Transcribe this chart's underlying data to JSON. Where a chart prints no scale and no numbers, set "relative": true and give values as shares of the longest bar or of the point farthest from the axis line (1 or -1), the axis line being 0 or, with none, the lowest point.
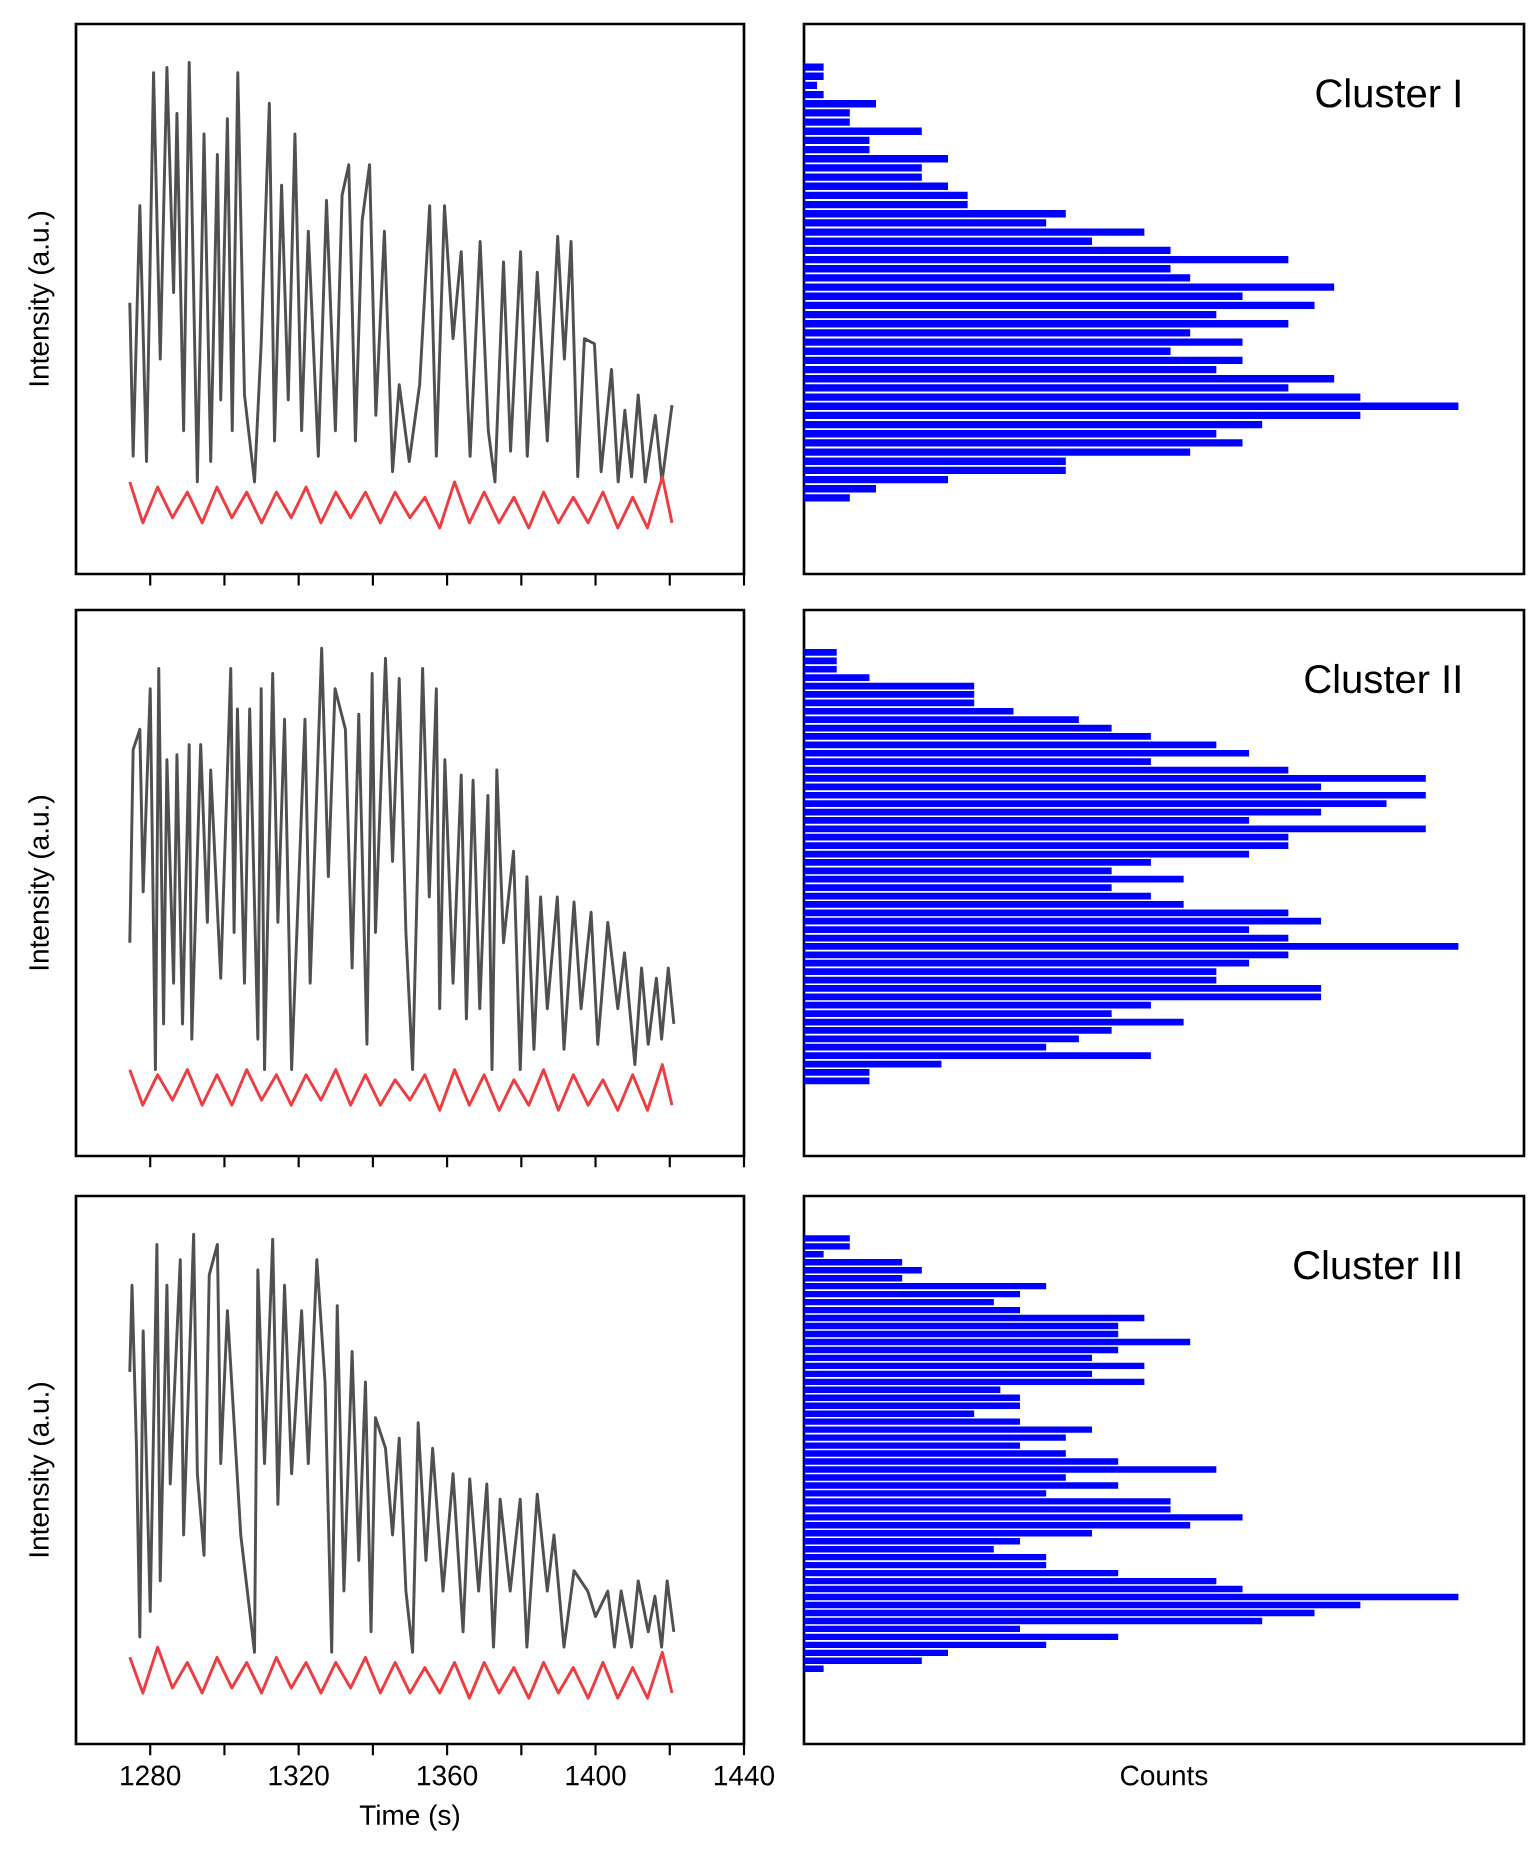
{
  "chart_data": [
    {
      "type": "line",
      "ylabel": "Intensity (a.u.)",
      "relative": true,
      "tick_labels": false,
      "xlim": [
        1260,
        1440
      ],
      "xticks": [
        1280,
        {
          "value": 1300,
          "label": null
        },
        1320,
        {
          "value": 1340,
          "label": null
        },
        1360,
        {
          "value": 1380,
          "label": null
        },
        1400,
        {
          "value": 1420,
          "label": null
        },
        1440
      ],
      "series": [
        {
          "color": "#505050",
          "x": [
            1274.5,
            1275.4,
            1277.2,
            1279,
            1280.9,
            1282.7,
            1284.5,
            1286.3,
            1287.2,
            1289,
            1290.5,
            1292.7,
            1294.5,
            1296.3,
            1298.1,
            1299,
            1300.8,
            1302.1,
            1303.6,
            1305.4,
            1308.1,
            1309.9,
            1312.1,
            1313.5,
            1315.4,
            1317.2,
            1319,
            1320.8,
            1322.6,
            1325.3,
            1327.5,
            1329.9,
            1331.7,
            1333.5,
            1335.3,
            1337.1,
            1339.1,
            1340.8,
            1343.1,
            1345.3,
            1347.1,
            1349.8,
            1352.6,
            1355.3,
            1357.1,
            1359.3,
            1361.6,
            1363.8,
            1366.2,
            1368.9,
            1371.1,
            1372.9,
            1375.2,
            1377.1,
            1379.8,
            1381.6,
            1384.3,
            1387,
            1389.8,
            1391.6,
            1393.4,
            1395.2,
            1397,
            1399.7,
            1401.5,
            1404.3,
            1406.1,
            1407.9,
            1409.7,
            1411.5,
            1413.4,
            1416.1,
            1417.9,
            1420.6
          ],
          "values": [
            0.53,
            0.23,
            0.72,
            0.22,
            0.98,
            0.42,
            0.99,
            0.55,
            0.9,
            0.28,
            1.0,
            0.18,
            0.86,
            0.22,
            0.82,
            0.34,
            0.89,
            0.28,
            0.98,
            0.35,
            0.18,
            0.45,
            0.92,
            0.26,
            0.76,
            0.34,
            0.86,
            0.28,
            0.67,
            0.23,
            0.73,
            0.28,
            0.74,
            0.8,
            0.26,
            0.69,
            0.8,
            0.31,
            0.67,
            0.2,
            0.37,
            0.22,
            0.37,
            0.72,
            0.23,
            0.72,
            0.46,
            0.63,
            0.23,
            0.65,
            0.28,
            0.18,
            0.61,
            0.24,
            0.63,
            0.23,
            0.59,
            0.26,
            0.66,
            0.42,
            0.65,
            0.19,
            0.46,
            0.45,
            0.2,
            0.4,
            0.18,
            0.32,
            0.19,
            0.35,
            0.18,
            0.31,
            0.18,
            0.33
          ]
        },
        {
          "color": "#ef3e42",
          "x": [
            1274.5,
            1278,
            1282,
            1286,
            1290,
            1294,
            1298,
            1302,
            1306,
            1310,
            1314,
            1318,
            1322,
            1326,
            1330,
            1334,
            1338,
            1342,
            1346,
            1350,
            1354,
            1358,
            1362,
            1366,
            1370,
            1374,
            1378,
            1382,
            1386,
            1390,
            1394,
            1398,
            1402,
            1406,
            1410,
            1414,
            1418,
            1420.6
          ],
          "values": [
            0.18,
            0.1,
            0.17,
            0.11,
            0.16,
            0.1,
            0.17,
            0.11,
            0.16,
            0.1,
            0.16,
            0.11,
            0.17,
            0.1,
            0.16,
            0.11,
            0.16,
            0.1,
            0.16,
            0.11,
            0.15,
            0.09,
            0.18,
            0.1,
            0.16,
            0.1,
            0.15,
            0.09,
            0.16,
            0.1,
            0.15,
            0.1,
            0.16,
            0.09,
            0.15,
            0.09,
            0.19,
            0.1
          ]
        }
      ]
    },
    {
      "type": "bar",
      "orientation": "horizontal",
      "relative": true,
      "color": "#0000ff",
      "annotations": [
        "Cluster I"
      ],
      "categories": [
        null,
        null,
        null,
        null,
        null,
        null,
        null,
        null,
        null,
        null,
        null,
        null,
        null,
        null,
        null,
        null,
        null,
        null,
        null,
        null,
        null,
        null,
        null,
        null,
        null,
        null,
        null,
        null,
        null,
        null,
        null,
        null,
        null,
        null,
        null,
        null,
        null,
        null,
        null,
        null,
        null,
        null,
        null,
        null,
        null,
        null,
        null,
        null
      ],
      "values": [
        0.03,
        0.03,
        0.02,
        0.03,
        0.11,
        0.07,
        0.07,
        0.18,
        0.1,
        0.1,
        0.22,
        0.18,
        0.18,
        0.22,
        0.25,
        0.25,
        0.4,
        0.37,
        0.52,
        0.44,
        0.56,
        0.74,
        0.56,
        0.59,
        0.81,
        0.67,
        0.78,
        0.63,
        0.74,
        0.59,
        0.67,
        0.56,
        0.67,
        0.63,
        0.81,
        0.74,
        0.85,
        1.0,
        0.85,
        0.7,
        0.63,
        0.67,
        0.59,
        0.4,
        0.4,
        0.22,
        0.11,
        0.07
      ]
    },
    {
      "type": "line",
      "ylabel": "Intensity (a.u.)",
      "relative": true,
      "tick_labels": false,
      "xlim": [
        1260,
        1440
      ],
      "xticks": [
        1280,
        {
          "value": 1300,
          "label": null
        },
        1320,
        {
          "value": 1340,
          "label": null
        },
        1360,
        {
          "value": 1380,
          "label": null
        },
        1400,
        {
          "value": 1420,
          "label": null
        },
        1440
      ],
      "series": [
        {
          "color": "#505050",
          "x": [
            1274.5,
            1275.4,
            1277.2,
            1278.1,
            1280.0,
            1281.4,
            1282.3,
            1283.6,
            1284.5,
            1286.3,
            1287.2,
            1288.7,
            1290.5,
            1291.2,
            1293.6,
            1295.4,
            1296.3,
            1299.0,
            1301.7,
            1302.6,
            1303.5,
            1305.4,
            1306.8,
            1309.0,
            1309.9,
            1310.8,
            1313.0,
            1314.4,
            1316.2,
            1318.1,
            1321.7,
            1323.1,
            1326.2,
            1328.0,
            1329.8,
            1332.6,
            1334.4,
            1336.2,
            1338.4,
            1339.8,
            1340.7,
            1343.4,
            1345.3,
            1347.1,
            1348.9,
            1350.7,
            1353.4,
            1355.2,
            1357.1,
            1358.0,
            1359.4,
            1361.6,
            1363.8,
            1365.2,
            1367.0,
            1368.8,
            1371.0,
            1372.1,
            1373.4,
            1375.2,
            1377.9,
            1379.7,
            1381.5,
            1383.4,
            1385.2,
            1387.0,
            1389.7,
            1391.5,
            1394.2,
            1396.1,
            1398.8,
            1400.6,
            1403.3,
            1406.0,
            1407.8,
            1410.6,
            1412.4,
            1414.2,
            1416.4,
            1417.8,
            1419.6,
            1421.1
          ],
          "values": [
            0.42,
            0.8,
            0.84,
            0.52,
            0.92,
            0.17,
            0.96,
            0.26,
            0.78,
            0.34,
            0.79,
            0.26,
            0.81,
            0.23,
            0.81,
            0.46,
            0.76,
            0.35,
            0.96,
            0.44,
            0.88,
            0.34,
            0.88,
            0.23,
            0.92,
            0.17,
            0.95,
            0.46,
            0.86,
            0.17,
            0.86,
            0.34,
            1.0,
            0.55,
            0.92,
            0.84,
            0.37,
            0.87,
            0.22,
            0.95,
            0.44,
            0.98,
            0.58,
            0.94,
            0.44,
            0.17,
            0.96,
            0.51,
            0.92,
            0.29,
            0.78,
            0.34,
            0.75,
            0.27,
            0.74,
            0.29,
            0.71,
            0.17,
            0.76,
            0.42,
            0.6,
            0.17,
            0.55,
            0.21,
            0.51,
            0.29,
            0.51,
            0.21,
            0.5,
            0.29,
            0.48,
            0.22,
            0.46,
            0.29,
            0.4,
            0.18,
            0.37,
            0.22,
            0.35,
            0.23,
            0.37,
            0.26
          ]
        },
        {
          "color": "#ef3e42",
          "x": [
            1274.5,
            1278,
            1282,
            1286,
            1290,
            1294,
            1298,
            1302,
            1306,
            1310,
            1314,
            1318,
            1322,
            1326,
            1330,
            1334,
            1338,
            1342,
            1346,
            1350,
            1354,
            1358,
            1362,
            1366,
            1370,
            1374,
            1378,
            1382,
            1386,
            1390,
            1394,
            1398,
            1402,
            1406,
            1410,
            1414,
            1418,
            1420.6
          ],
          "values": [
            0.17,
            0.1,
            0.16,
            0.11,
            0.17,
            0.1,
            0.16,
            0.1,
            0.17,
            0.11,
            0.16,
            0.1,
            0.16,
            0.11,
            0.17,
            0.1,
            0.16,
            0.1,
            0.15,
            0.11,
            0.16,
            0.09,
            0.17,
            0.1,
            0.16,
            0.09,
            0.15,
            0.1,
            0.17,
            0.09,
            0.16,
            0.1,
            0.15,
            0.09,
            0.16,
            0.09,
            0.18,
            0.1
          ]
        }
      ]
    },
    {
      "type": "bar",
      "orientation": "horizontal",
      "relative": true,
      "color": "#0000ff",
      "annotations": [
        "Cluster II"
      ],
      "categories": [
        null,
        null,
        null,
        null,
        null,
        null,
        null,
        null,
        null,
        null,
        null,
        null,
        null,
        null,
        null,
        null,
        null,
        null,
        null,
        null,
        null,
        null,
        null,
        null,
        null,
        null,
        null,
        null,
        null,
        null,
        null,
        null,
        null,
        null,
        null,
        null,
        null,
        null,
        null,
        null,
        null,
        null,
        null,
        null,
        null,
        null,
        null,
        null,
        null,
        null,
        null,
        null
      ],
      "values": [
        0.05,
        0.05,
        0.05,
        0.1,
        0.26,
        0.26,
        0.26,
        0.32,
        0.42,
        0.47,
        0.53,
        0.63,
        0.68,
        0.53,
        0.74,
        0.95,
        0.79,
        0.95,
        0.89,
        0.79,
        0.68,
        0.95,
        0.74,
        0.74,
        0.68,
        0.53,
        0.47,
        0.58,
        0.47,
        0.53,
        0.58,
        0.74,
        0.79,
        0.68,
        0.74,
        1.0,
        0.74,
        0.68,
        0.63,
        0.63,
        0.79,
        0.79,
        0.53,
        0.47,
        0.58,
        0.47,
        0.42,
        0.37,
        0.53,
        0.21,
        0.1,
        0.1
      ]
    },
    {
      "type": "line",
      "ylabel": "Intensity (a.u.)",
      "xlabel": "Time (s)",
      "relative": true,
      "tick_labels": "x",
      "xlim": [
        1260,
        1440
      ],
      "xticks": [
        1280,
        {
          "value": 1300,
          "label": null
        },
        1320,
        {
          "value": 1340,
          "label": null
        },
        1360,
        {
          "value": 1380,
          "label": null
        },
        1400,
        {
          "value": 1420,
          "label": null
        },
        1440
      ],
      "series": [
        {
          "color": "#505050",
          "x": [
            1274.5,
            1275.1,
            1276.3,
            1277.2,
            1278.1,
            1280.0,
            1281.8,
            1282.7,
            1284.5,
            1285.4,
            1288.1,
            1289.0,
            1291.7,
            1292.7,
            1294.5,
            1295.9,
            1298.1,
            1299.0,
            1300.8,
            1304.4,
            1308.1,
            1309.0,
            1310.8,
            1313.0,
            1314.4,
            1316.2,
            1318.1,
            1320.8,
            1322.6,
            1324.9,
            1327.1,
            1328.9,
            1330.4,
            1332.2,
            1334.4,
            1336.2,
            1338.0,
            1339.5,
            1340.7,
            1343.4,
            1345.3,
            1347.1,
            1348.9,
            1350.7,
            1352.2,
            1354.3,
            1356.1,
            1358.9,
            1361.6,
            1364.3,
            1366.1,
            1368.5,
            1370.7,
            1372.5,
            1374.3,
            1377.0,
            1379.7,
            1381.5,
            1384.3,
            1387.0,
            1388.8,
            1391.5,
            1394.2,
            1397.9,
            1400.0,
            1403.3,
            1405.1,
            1406.9,
            1409.7,
            1411.5,
            1414.2,
            1416.0,
            1417.8,
            1419.3,
            1421.1
          ],
          "values": [
            0.73,
            0.9,
            0.58,
            0.21,
            0.81,
            0.26,
            0.98,
            0.32,
            0.9,
            0.51,
            0.95,
            0.41,
            1.0,
            0.53,
            0.37,
            0.92,
            0.98,
            0.55,
            0.85,
            0.41,
            0.18,
            0.93,
            0.55,
            0.99,
            0.47,
            0.9,
            0.53,
            0.85,
            0.55,
            0.95,
            0.71,
            0.18,
            0.86,
            0.3,
            0.77,
            0.36,
            0.71,
            0.22,
            0.64,
            0.58,
            0.41,
            0.6,
            0.3,
            0.18,
            0.63,
            0.36,
            0.58,
            0.3,
            0.53,
            0.22,
            0.52,
            0.3,
            0.51,
            0.19,
            0.48,
            0.3,
            0.48,
            0.19,
            0.49,
            0.3,
            0.41,
            0.19,
            0.34,
            0.3,
            0.25,
            0.3,
            0.19,
            0.3,
            0.19,
            0.32,
            0.22,
            0.29,
            0.19,
            0.32,
            0.22
          ]
        },
        {
          "color": "#ef3e42",
          "x": [
            1274.5,
            1278,
            1282,
            1286,
            1290,
            1294,
            1298,
            1302,
            1306,
            1310,
            1314,
            1318,
            1322,
            1326,
            1330,
            1334,
            1338,
            1342,
            1346,
            1350,
            1354,
            1358,
            1362,
            1366,
            1370,
            1374,
            1378,
            1382,
            1386,
            1390,
            1394,
            1398,
            1402,
            1406,
            1410,
            1414,
            1418,
            1420.6
          ],
          "values": [
            0.17,
            0.1,
            0.19,
            0.11,
            0.16,
            0.1,
            0.17,
            0.11,
            0.16,
            0.1,
            0.17,
            0.11,
            0.16,
            0.1,
            0.16,
            0.11,
            0.17,
            0.1,
            0.16,
            0.1,
            0.15,
            0.1,
            0.16,
            0.09,
            0.16,
            0.1,
            0.15,
            0.09,
            0.16,
            0.1,
            0.15,
            0.09,
            0.16,
            0.09,
            0.15,
            0.09,
            0.18,
            0.1
          ]
        }
      ]
    },
    {
      "type": "bar",
      "orientation": "horizontal",
      "relative": true,
      "color": "#0000ff",
      "annotations": [
        "Cluster III"
      ],
      "xlabel": "Counts",
      "categories": [
        null,
        null,
        null,
        null,
        null,
        null,
        null,
        null,
        null,
        null,
        null,
        null,
        null,
        null,
        null,
        null,
        null,
        null,
        null,
        null,
        null,
        null,
        null,
        null,
        null,
        null,
        null,
        null,
        null,
        null,
        null,
        null,
        null,
        null,
        null,
        null,
        null,
        null,
        null,
        null,
        null,
        null,
        null,
        null,
        null,
        null,
        null,
        null,
        null,
        null,
        null,
        null,
        null,
        null,
        null
      ],
      "values": [
        0.07,
        0.07,
        0.03,
        0.15,
        0.18,
        0.15,
        0.37,
        0.33,
        0.29,
        0.33,
        0.52,
        0.48,
        0.48,
        0.59,
        0.48,
        0.44,
        0.52,
        0.44,
        0.52,
        0.3,
        0.33,
        0.33,
        0.26,
        0.33,
        0.44,
        0.4,
        0.33,
        0.4,
        0.48,
        0.63,
        0.4,
        0.48,
        0.37,
        0.56,
        0.56,
        0.67,
        0.59,
        0.44,
        0.33,
        0.29,
        0.37,
        0.37,
        0.48,
        0.63,
        0.67,
        1.0,
        0.85,
        0.78,
        0.7,
        0.33,
        0.48,
        0.37,
        0.22,
        0.18,
        0.03
      ]
    }
  ]
}
